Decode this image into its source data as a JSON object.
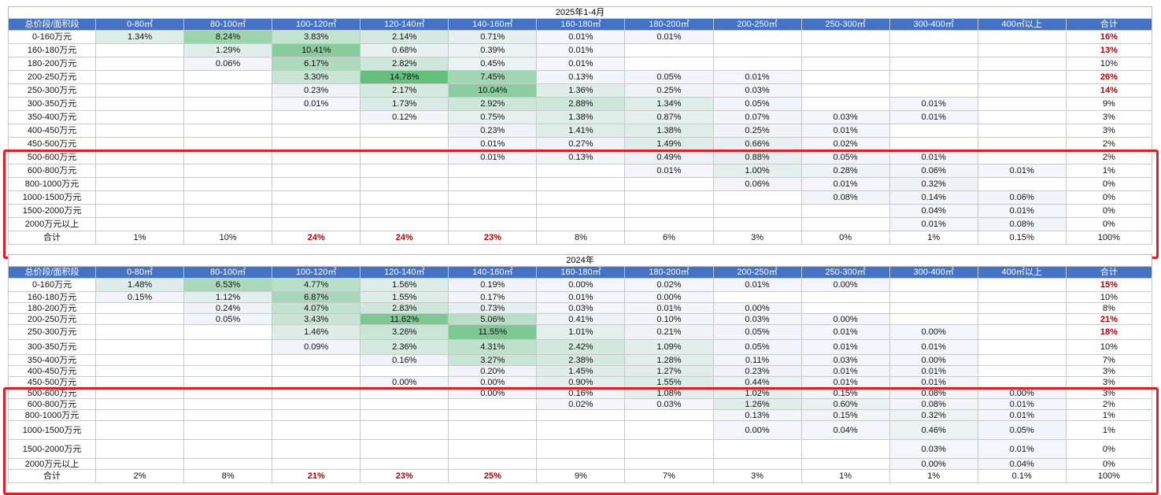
{
  "colors": {
    "header_bg": "#4472c4",
    "header_text": "#ffffff",
    "highlight_border": "#e02020",
    "emphasis_text": "#c00000",
    "heat_max": "#63be7b",
    "heat_min": "#f4f5fc"
  },
  "columns": [
    "总价段/面积段",
    "0-80㎡",
    "80-100㎡",
    "100-120㎡",
    "120-140㎡",
    "140-160㎡",
    "160-180㎡",
    "180-200㎡",
    "200-250㎡",
    "250-300㎡",
    "300-400㎡",
    "400㎡以上",
    "合计"
  ],
  "tables": [
    {
      "title": "2025年1-4月",
      "rows": [
        [
          "0-160万元",
          "1.34%",
          "8.24%",
          "3.83%",
          "2.14%",
          "0.71%",
          "0.01%",
          "0.01%",
          "",
          "",
          "",
          "",
          "16%"
        ],
        [
          "160-180万元",
          "",
          "1.29%",
          "10.41%",
          "0.68%",
          "0.39%",
          "0.01%",
          "",
          "",
          "",
          "",
          "",
          "13%"
        ],
        [
          "180-200万元",
          "",
          "0.06%",
          "6.17%",
          "2.82%",
          "0.45%",
          "0.01%",
          "",
          "",
          "",
          "",
          "",
          "10%"
        ],
        [
          "200-250万元",
          "",
          "",
          "3.30%",
          "14.78%",
          "7.45%",
          "0.13%",
          "0.05%",
          "0.01%",
          "",
          "",
          "",
          "26%"
        ],
        [
          "250-300万元",
          "",
          "",
          "0.23%",
          "2.17%",
          "10.04%",
          "1.36%",
          "0.25%",
          "0.03%",
          "",
          "",
          "",
          "14%"
        ],
        [
          "300-350万元",
          "",
          "",
          "0.01%",
          "1.73%",
          "2.92%",
          "2.88%",
          "1.34%",
          "0.05%",
          "",
          "0.01%",
          "",
          "9%"
        ],
        [
          "350-400万元",
          "",
          "",
          "",
          "0.12%",
          "0.75%",
          "1.38%",
          "0.87%",
          "0.07%",
          "0.03%",
          "0.01%",
          "",
          "3%"
        ],
        [
          "400-450万元",
          "",
          "",
          "",
          "",
          "0.23%",
          "1.41%",
          "1.38%",
          "0.25%",
          "0.01%",
          "",
          "",
          "3%"
        ],
        [
          "450-500万元",
          "",
          "",
          "",
          "",
          "0.01%",
          "0.27%",
          "1.49%",
          "0.66%",
          "0.02%",
          "",
          "",
          "2%"
        ],
        [
          "500-600万元",
          "",
          "",
          "",
          "",
          "0.01%",
          "0.13%",
          "0.49%",
          "0.88%",
          "0.05%",
          "0.01%",
          "",
          "2%"
        ],
        [
          "600-800万元",
          "",
          "",
          "",
          "",
          "",
          "",
          "0.01%",
          "1.00%",
          "0.28%",
          "0.06%",
          "0.01%",
          "1%"
        ],
        [
          "800-1000万元",
          "",
          "",
          "",
          "",
          "",
          "",
          "",
          "0.06%",
          "0.01%",
          "0.32%",
          "",
          "0%"
        ],
        [
          "1000-1500万元",
          "",
          "",
          "",
          "",
          "",
          "",
          "",
          "",
          "0.08%",
          "0.14%",
          "0.06%",
          "0%"
        ],
        [
          "1500-2000万元",
          "",
          "",
          "",
          "",
          "",
          "",
          "",
          "",
          "",
          "0.04%",
          "0.01%",
          "0%"
        ],
        [
          "2000万元以上",
          "",
          "",
          "",
          "",
          "",
          "",
          "",
          "",
          "",
          "0.01%",
          "0.08%",
          "0%"
        ],
        [
          "合计",
          "1%",
          "10%",
          "24%",
          "24%",
          "23%",
          "8%",
          "6%",
          "3%",
          "0%",
          "1%",
          "0.15%",
          "100%"
        ]
      ],
      "emphasis": [
        [
          0,
          12
        ],
        [
          1,
          12
        ],
        [
          3,
          12
        ],
        [
          4,
          12
        ],
        [
          15,
          3
        ],
        [
          15,
          4
        ],
        [
          15,
          5
        ]
      ]
    },
    {
      "title": "2024年",
      "rows": [
        [
          "0-160万元",
          "1.48%",
          "6.53%",
          "4.77%",
          "1.56%",
          "0.19%",
          "0.00%",
          "0.02%",
          "0.01%",
          "0.00%",
          "",
          "",
          "15%"
        ],
        [
          "160-180万元",
          "0.15%",
          "1.12%",
          "6.87%",
          "1.55%",
          "0.17%",
          "0.01%",
          "0.00%",
          "",
          "",
          "",
          "",
          "10%"
        ],
        [
          "180-200万元",
          "",
          "0.24%",
          "4.07%",
          "2.83%",
          "0.73%",
          "0.03%",
          "0.01%",
          "0.00%",
          "",
          "",
          "",
          "8%"
        ],
        [
          "200-250万元",
          "",
          "0.05%",
          "3.43%",
          "11.62%",
          "5.06%",
          "0.41%",
          "0.10%",
          "0.03%",
          "0.00%",
          "",
          "",
          "21%"
        ],
        [
          "250-300万元",
          "",
          "",
          "1.46%",
          "3.26%",
          "11.55%",
          "1.01%",
          "0.21%",
          "0.05%",
          "0.01%",
          "0.00%",
          "",
          "18%"
        ],
        [
          "300-350万元",
          "",
          "",
          "0.09%",
          "2.36%",
          "4.31%",
          "2.42%",
          "1.09%",
          "0.05%",
          "0.01%",
          "0.01%",
          "",
          "10%"
        ],
        [
          "350-400万元",
          "",
          "",
          "",
          "0.16%",
          "3.27%",
          "2.38%",
          "1.28%",
          "0.11%",
          "0.03%",
          "0.00%",
          "",
          "7%"
        ],
        [
          "400-450万元",
          "",
          "",
          "",
          "",
          "0.20%",
          "1.45%",
          "1.27%",
          "0.23%",
          "0.01%",
          "0.01%",
          "",
          "3%"
        ],
        [
          "450-500万元",
          "",
          "",
          "",
          "0.00%",
          "0.00%",
          "0.90%",
          "1.55%",
          "0.44%",
          "0.01%",
          "0.01%",
          "",
          "3%"
        ],
        [
          "500-600万元",
          "",
          "",
          "",
          "",
          "0.00%",
          "0.16%",
          "1.08%",
          "1.02%",
          "0.15%",
          "0.08%",
          "0.00%",
          "3%"
        ],
        [
          "600-800万元",
          "",
          "",
          "",
          "",
          "",
          "0.02%",
          "0.03%",
          "1.26%",
          "0.60%",
          "0.08%",
          "0.01%",
          "2%"
        ],
        [
          "800-1000万元",
          "",
          "",
          "",
          "",
          "",
          "",
          "",
          "0.13%",
          "0.15%",
          "0.32%",
          "0.01%",
          "1%"
        ],
        [
          "1000-1500万元",
          "",
          "",
          "",
          "",
          "",
          "",
          "",
          "0.00%",
          "0.04%",
          "0.46%",
          "0.05%",
          "1%"
        ],
        [
          "1500-2000万元",
          "",
          "",
          "",
          "",
          "",
          "",
          "",
          "",
          "",
          "0.03%",
          "0.01%",
          "0%"
        ],
        [
          "2000万元以上",
          "",
          "",
          "",
          "",
          "",
          "",
          "",
          "",
          "",
          "0.00%",
          "0.04%",
          "0%"
        ],
        [
          "合计",
          "2%",
          "8%",
          "21%",
          "23%",
          "25%",
          "9%",
          "7%",
          "3%",
          "1%",
          "1%",
          "0.1%",
          "100%"
        ]
      ],
      "emphasis": [
        [
          0,
          12
        ],
        [
          3,
          12
        ],
        [
          4,
          12
        ],
        [
          15,
          3
        ],
        [
          15,
          4
        ],
        [
          15,
          5
        ]
      ]
    }
  ]
}
